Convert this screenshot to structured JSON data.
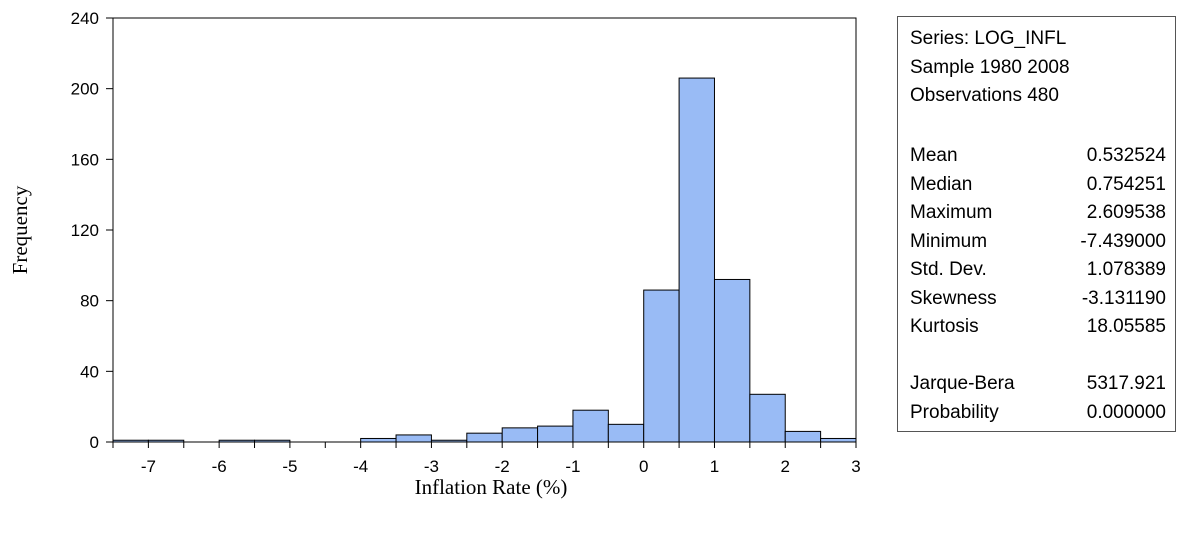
{
  "chart_data": {
    "type": "bar",
    "xlabel": "Inflation Rate (%)",
    "ylabel": "Frequency",
    "xlim": [
      -7.5,
      3
    ],
    "ylim": [
      0,
      240
    ],
    "xticks": [
      -7,
      -6,
      -5,
      -4,
      -3,
      -2,
      -1,
      0,
      1,
      2,
      3
    ],
    "yticks": [
      0,
      40,
      80,
      120,
      160,
      200,
      240
    ],
    "bin_width": 0.5,
    "bins": [
      {
        "start": -7.5,
        "value": 1
      },
      {
        "start": -7.0,
        "value": 1
      },
      {
        "start": -6.0,
        "value": 1
      },
      {
        "start": -5.5,
        "value": 1
      },
      {
        "start": -4.0,
        "value": 2
      },
      {
        "start": -3.5,
        "value": 4
      },
      {
        "start": -3.0,
        "value": 1
      },
      {
        "start": -2.5,
        "value": 5
      },
      {
        "start": -2.0,
        "value": 8
      },
      {
        "start": -1.5,
        "value": 9
      },
      {
        "start": -1.0,
        "value": 18
      },
      {
        "start": -0.5,
        "value": 10
      },
      {
        "start": 0.0,
        "value": 86
      },
      {
        "start": 0.5,
        "value": 206
      },
      {
        "start": 1.0,
        "value": 92
      },
      {
        "start": 1.5,
        "value": 27
      },
      {
        "start": 2.0,
        "value": 6
      },
      {
        "start": 2.5,
        "value": 2
      }
    ],
    "grid": false,
    "colors": {
      "bar_fill": "#99bbf5",
      "bar_stroke": "#000000"
    }
  },
  "stats": {
    "series": "Series: LOG_INFL",
    "sample": "Sample 1980 2008",
    "observations": "Observations 480",
    "rows": [
      {
        "label": "Mean",
        "value": "0.532524"
      },
      {
        "label": "Median",
        "value": "0.754251"
      },
      {
        "label": "Maximum",
        "value": "2.609538"
      },
      {
        "label": "Minimum",
        "value": "-7.439000"
      },
      {
        "label": "Std. Dev.",
        "value": "1.078389"
      },
      {
        "label": "Skewness",
        "value": "-3.131190"
      },
      {
        "label": "Kurtosis",
        "value": "18.05585"
      }
    ],
    "tests": [
      {
        "label": "Jarque-Bera",
        "value": "5317.921"
      },
      {
        "label": "Probability",
        "value": "0.000000"
      }
    ]
  }
}
